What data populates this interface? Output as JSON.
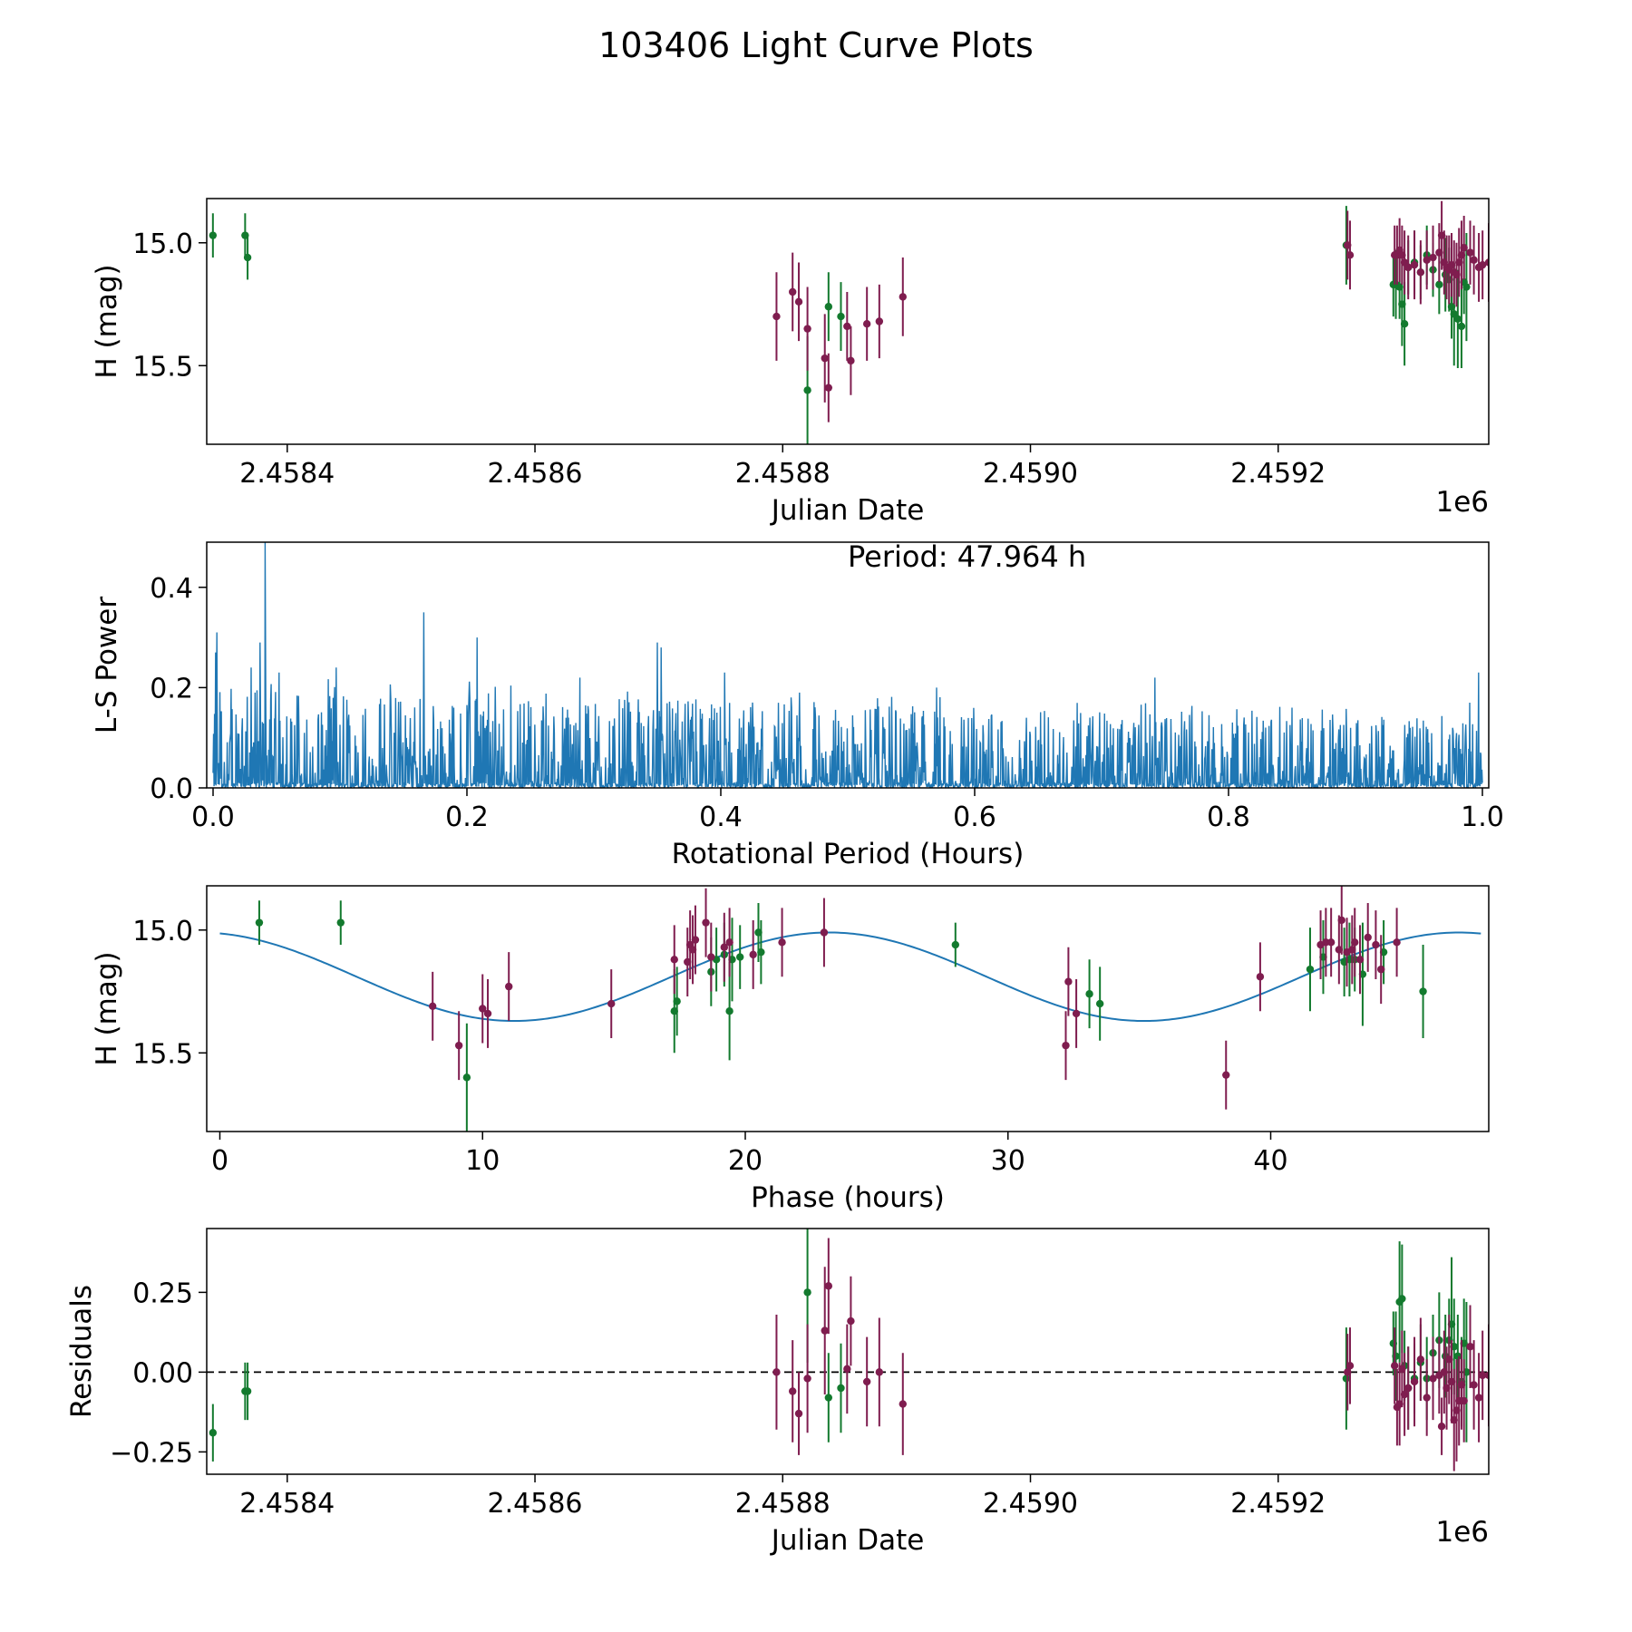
{
  "title": "103406 Light Curve Plots",
  "colors": {
    "green": "#137a2e",
    "purple": "#7f1d4f",
    "blue": "#1f77b4",
    "axis": "#000000"
  },
  "chart_data": [
    {
      "type": "scatter",
      "name": "light-curve",
      "xlabel": "Julian Date",
      "ylabel": "H (mag)",
      "x_offset_label": "1e6",
      "xlim": [
        2458335,
        2459370
      ],
      "ylim": [
        15.82,
        14.82
      ],
      "xticks": [
        2458400,
        2458600,
        2458800,
        2459000,
        2459200
      ],
      "xtick_labels": [
        "2.4584",
        "2.4586",
        "2.4588",
        "2.4590",
        "2.4592"
      ],
      "yticks": [
        15.5,
        15.0
      ],
      "ytick_labels": [
        "15.5",
        "15.0"
      ],
      "series": [
        {
          "name": "green",
          "color": "#137a2e",
          "x": [
            2458340,
            2458366,
            2458368,
            2458820,
            2458837,
            2458847,
            2459255,
            2459293,
            2459295,
            2459298,
            2459300,
            2459302,
            2459305,
            2459310,
            2459315,
            2459320,
            2459325,
            2459330,
            2459335,
            2459338,
            2459340,
            2459342,
            2459345,
            2459348,
            2459350,
            2459352
          ],
          "y": [
            14.97,
            14.97,
            15.06,
            15.6,
            15.26,
            15.3,
            15.01,
            15.17,
            15.17,
            15.18,
            15.25,
            15.33,
            15.1,
            15.08,
            15.12,
            15.05,
            15.11,
            15.17,
            15.13,
            15.15,
            15.26,
            15.29,
            15.31,
            15.34,
            15.16,
            15.18
          ],
          "err": [
            0.09,
            0.09,
            0.09,
            0.22,
            0.14,
            0.14,
            0.16,
            0.13,
            0.14,
            0.13,
            0.17,
            0.17,
            0.11,
            0.13,
            0.11,
            0.12,
            0.11,
            0.12,
            0.15,
            0.13,
            0.13,
            0.21,
            0.2,
            0.17,
            0.13,
            0.22
          ]
        },
        {
          "name": "purple",
          "color": "#7f1d4f",
          "x": [
            2458795,
            2458808,
            2458813,
            2458820,
            2458834,
            2458837,
            2458852,
            2458855,
            2458868,
            2458878,
            2458897,
            2459256,
            2459258,
            2459294,
            2459296,
            2459298,
            2459300,
            2459302,
            2459305,
            2459310,
            2459315,
            2459320,
            2459325,
            2459330,
            2459332,
            2459334,
            2459336,
            2459338,
            2459340,
            2459342,
            2459344,
            2459346,
            2459348,
            2459350,
            2459355,
            2459358,
            2459362,
            2459365,
            2459370
          ],
          "y": [
            15.3,
            15.2,
            15.24,
            15.35,
            15.47,
            15.59,
            15.34,
            15.48,
            15.33,
            15.32,
            15.22,
            15.01,
            15.05,
            15.05,
            15.05,
            15.03,
            15.05,
            15.08,
            15.1,
            15.09,
            15.12,
            15.07,
            15.06,
            15.04,
            14.97,
            15.08,
            15.1,
            15.11,
            15.09,
            15.12,
            15.13,
            15.08,
            15.05,
            15.02,
            15.04,
            15.07,
            15.1,
            15.09,
            15.08
          ],
          "err": [
            0.18,
            0.16,
            0.16,
            0.17,
            0.18,
            0.14,
            0.14,
            0.14,
            0.15,
            0.15,
            0.16,
            0.14,
            0.14,
            0.12,
            0.12,
            0.13,
            0.12,
            0.13,
            0.13,
            0.14,
            0.13,
            0.12,
            0.13,
            0.12,
            0.14,
            0.13,
            0.13,
            0.14,
            0.13,
            0.13,
            0.13,
            0.14,
            0.14,
            0.13,
            0.13,
            0.14,
            0.14,
            0.14,
            0.16
          ]
        }
      ]
    },
    {
      "type": "line",
      "name": "periodogram",
      "xlabel": "Rotational Period (Hours)",
      "ylabel": "L-S Power",
      "annotation": "Period: 47.964 h",
      "xlim": [
        -0.005,
        1.005
      ],
      "ylim": [
        0,
        0.49
      ],
      "xticks": [
        0.0,
        0.2,
        0.4,
        0.6,
        0.8,
        1.0
      ],
      "xtick_labels": [
        "0.0",
        "0.2",
        "0.4",
        "0.6",
        "0.8",
        "1.0"
      ],
      "yticks": [
        0.0,
        0.2,
        0.4
      ],
      "ytick_labels": [
        "0.0",
        "0.2",
        "0.4"
      ],
      "color": "#1f77b4",
      "x_range": [
        0.0,
        1.0
      ],
      "peaks": {
        "x": [
          0.002,
          0.003,
          0.03,
          0.037,
          0.041,
          0.052,
          0.097,
          0.166,
          0.208,
          0.289,
          0.35,
          0.353,
          0.403,
          0.462,
          0.57,
          0.742,
          0.85,
          0.99,
          0.997
        ],
        "y": [
          0.27,
          0.31,
          0.24,
          0.29,
          0.49,
          0.23,
          0.24,
          0.35,
          0.3,
          0.22,
          0.29,
          0.28,
          0.23,
          0.19,
          0.2,
          0.22,
          0.16,
          0.17,
          0.23
        ]
      },
      "baseline_max": 0.2
    },
    {
      "type": "scatter",
      "name": "phase-folded",
      "xlabel": "Phase (hours)",
      "ylabel": "H (mag)",
      "xlim": [
        -0.5,
        48.3
      ],
      "ylim": [
        15.82,
        14.82
      ],
      "xticks": [
        0,
        10,
        20,
        30,
        40
      ],
      "xtick_labels": [
        "0",
        "10",
        "20",
        "30",
        "40"
      ],
      "yticks": [
        15.5,
        15.0
      ],
      "ytick_labels": [
        "15.5",
        "15.0"
      ],
      "model": {
        "mean": 15.19,
        "amplitude": 0.18,
        "period": 23.98,
        "peak_phase": 11.2,
        "x_range": [
          0,
          48
        ]
      },
      "series": [
        {
          "name": "green",
          "color": "#137a2e",
          "x": [
            1.5,
            4.6,
            9.4,
            17.3,
            17.4,
            18.7,
            18.9,
            19.2,
            19.4,
            19.5,
            19.8,
            20.5,
            20.6,
            28.0,
            33.1,
            33.5,
            41.5,
            42.0,
            42.8,
            43.0,
            43.2,
            43.5,
            44.3,
            45.8
          ],
          "y": [
            14.97,
            14.97,
            15.6,
            15.33,
            15.29,
            15.17,
            15.12,
            15.1,
            15.33,
            15.12,
            15.11,
            15.01,
            15.09,
            15.06,
            15.26,
            15.3,
            15.16,
            15.11,
            15.13,
            15.12,
            15.12,
            15.18,
            15.09,
            15.25
          ],
          "err": [
            0.09,
            0.09,
            0.22,
            0.17,
            0.14,
            0.14,
            0.13,
            0.13,
            0.2,
            0.17,
            0.13,
            0.12,
            0.13,
            0.09,
            0.14,
            0.15,
            0.17,
            0.15,
            0.14,
            0.15,
            0.13,
            0.21,
            0.13,
            0.19
          ]
        },
        {
          "name": "purple",
          "color": "#7f1d4f",
          "x": [
            8.1,
            9.1,
            10.0,
            10.2,
            11.0,
            14.9,
            17.3,
            17.8,
            17.9,
            18.0,
            18.1,
            18.5,
            18.7,
            19.2,
            19.4,
            20.3,
            21.4,
            23.0,
            32.2,
            32.3,
            32.6,
            38.3,
            39.6,
            41.9,
            42.1,
            42.3,
            42.6,
            42.7,
            42.9,
            43.1,
            43.2,
            43.4,
            43.7,
            44.0,
            44.2,
            44.8
          ],
          "y": [
            15.31,
            15.47,
            15.32,
            15.34,
            15.23,
            15.3,
            15.12,
            15.13,
            15.06,
            15.08,
            15.04,
            14.97,
            15.11,
            15.07,
            15.05,
            15.1,
            15.05,
            15.01,
            15.47,
            15.21,
            15.34,
            15.59,
            15.19,
            15.06,
            15.05,
            15.05,
            15.08,
            14.96,
            15.09,
            15.08,
            15.05,
            15.12,
            15.03,
            15.06,
            15.16,
            15.05
          ]
        }
      ]
    },
    {
      "type": "scatter",
      "name": "residuals",
      "xlabel": "Julian Date",
      "ylabel": "Residuals",
      "x_offset_label": "1e6",
      "xlim": [
        2458335,
        2459370
      ],
      "ylim": [
        -0.32,
        0.45
      ],
      "xticks": [
        2458400,
        2458600,
        2458800,
        2459000,
        2459200
      ],
      "xtick_labels": [
        "2.4584",
        "2.4586",
        "2.4588",
        "2.4590",
        "2.4592"
      ],
      "yticks": [
        0.25,
        0.0,
        -0.25
      ],
      "ytick_labels": [
        "0.25",
        "0.00",
        "−0.25"
      ],
      "zero_line": 0,
      "series": [
        {
          "name": "green",
          "color": "#137a2e",
          "x": [
            2458340,
            2458366,
            2458368,
            2458820,
            2458837,
            2458847,
            2459255,
            2459293,
            2459295,
            2459298,
            2459300,
            2459302,
            2459305,
            2459310,
            2459315,
            2459320,
            2459325,
            2459330,
            2459335,
            2459338,
            2459340,
            2459342,
            2459345,
            2459348,
            2459350,
            2459352
          ],
          "y": [
            -0.19,
            -0.06,
            -0.06,
            0.25,
            -0.08,
            -0.05,
            -0.02,
            0.09,
            0.05,
            0.22,
            0.23,
            0.02,
            -0.05,
            -0.02,
            0.03,
            -0.02,
            0.06,
            0.1,
            0.05,
            0.1,
            0.15,
            0.08,
            0.05,
            -0.03,
            0.09,
            0.0
          ],
          "err": [
            0.09,
            0.09,
            0.09,
            0.22,
            0.14,
            0.14,
            0.16,
            0.1,
            0.14,
            0.19,
            0.17,
            0.11,
            0.13,
            0.11,
            0.12,
            0.13,
            0.12,
            0.15,
            0.13,
            0.13,
            0.21,
            0.15,
            0.13,
            0.14,
            0.14,
            0.22
          ]
        },
        {
          "name": "purple",
          "color": "#7f1d4f",
          "x": [
            2458795,
            2458808,
            2458813,
            2458820,
            2458834,
            2458837,
            2458852,
            2458855,
            2458868,
            2458878,
            2458897,
            2459256,
            2459258,
            2459294,
            2459296,
            2459298,
            2459300,
            2459302,
            2459305,
            2459310,
            2459315,
            2459320,
            2459325,
            2459330,
            2459332,
            2459334,
            2459336,
            2459338,
            2459340,
            2459342,
            2459344,
            2459346,
            2459348,
            2459350,
            2459355,
            2459358,
            2459362,
            2459365,
            2459370
          ],
          "y": [
            0.0,
            -0.06,
            -0.13,
            -0.02,
            0.13,
            0.27,
            0.01,
            0.16,
            -0.03,
            0.0,
            -0.1,
            0.0,
            0.02,
            0.02,
            -0.11,
            -0.1,
            0.01,
            -0.07,
            -0.05,
            -0.03,
            0.04,
            -0.08,
            -0.02,
            -0.01,
            -0.17,
            0.0,
            -0.05,
            0.04,
            -0.03,
            -0.15,
            -0.12,
            -0.09,
            -0.04,
            -0.09,
            0.08,
            -0.04,
            -0.08,
            -0.01,
            -0.01
          ],
          "err": [
            0.18,
            0.16,
            0.13,
            0.17,
            0.2,
            0.15,
            0.14,
            0.14,
            0.14,
            0.17,
            0.16,
            0.12,
            0.12,
            0.12,
            0.12,
            0.13,
            0.12,
            0.13,
            0.13,
            0.14,
            0.13,
            0.12,
            0.13,
            0.12,
            0.09,
            0.13,
            0.13,
            0.14,
            0.13,
            0.16,
            0.16,
            0.14,
            0.14,
            0.13,
            0.13,
            0.14,
            0.14,
            0.14,
            0.16
          ]
        }
      ]
    }
  ]
}
